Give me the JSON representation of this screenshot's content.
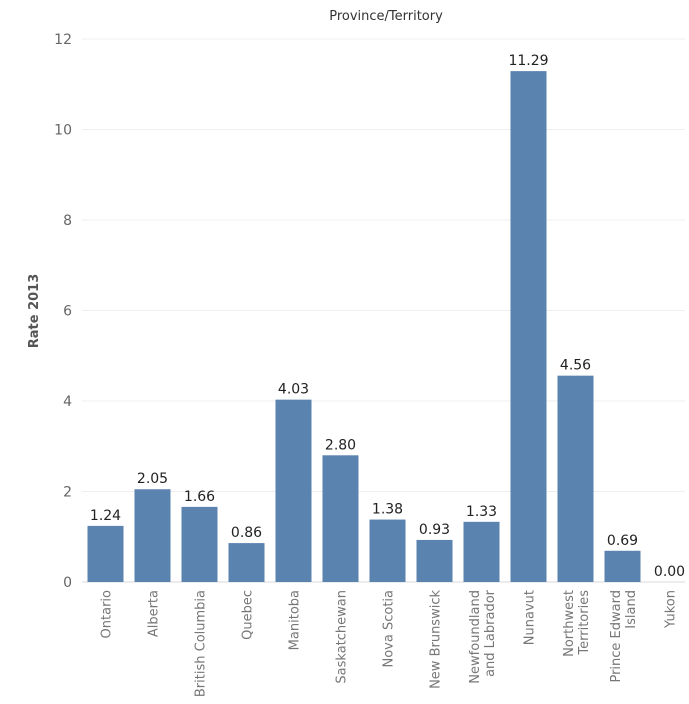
{
  "chart_data": {
    "type": "bar",
    "title": "Province/Territory",
    "ylabel": "Rate 2013",
    "xlabel": "",
    "ylim": [
      0,
      12
    ],
    "yticks": [
      0,
      2,
      4,
      6,
      8,
      10,
      12
    ],
    "grid": true,
    "bar_color": "#5a83b0",
    "categories": [
      [
        "Ontario"
      ],
      [
        "Alberta"
      ],
      [
        "British Columbia"
      ],
      [
        "Quebec"
      ],
      [
        "Manitoba"
      ],
      [
        "Saskatchewan"
      ],
      [
        "Nova Scotia"
      ],
      [
        "New Brunswick"
      ],
      [
        "Newfoundland",
        "and Labrador"
      ],
      [
        "Nunavut"
      ],
      [
        "Northwest",
        "Territories"
      ],
      [
        "Prince Edward",
        "Island"
      ],
      [
        "Yukon"
      ]
    ],
    "values": [
      1.24,
      2.05,
      1.66,
      0.86,
      4.03,
      2.8,
      1.38,
      0.93,
      1.33,
      11.29,
      4.56,
      0.69,
      0.0
    ],
    "data_labels": [
      "1.24",
      "2.05",
      "1.66",
      "0.86",
      "4.03",
      "2.80",
      "1.38",
      "0.93",
      "1.33",
      "11.29",
      "4.56",
      "0.69",
      "0.00"
    ]
  }
}
